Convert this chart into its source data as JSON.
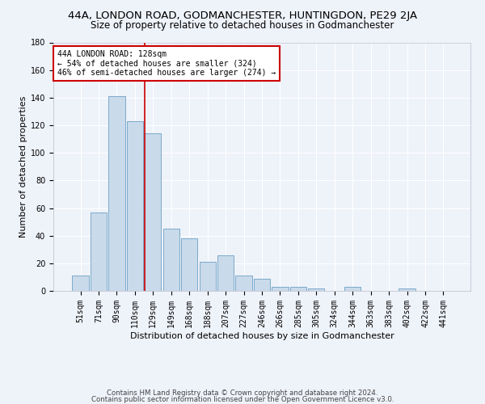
{
  "title": "44A, LONDON ROAD, GODMANCHESTER, HUNTINGDON, PE29 2JA",
  "subtitle": "Size of property relative to detached houses in Godmanchester",
  "xlabel": "Distribution of detached houses by size in Godmanchester",
  "ylabel": "Number of detached properties",
  "categories": [
    "51sqm",
    "71sqm",
    "90sqm",
    "110sqm",
    "129sqm",
    "149sqm",
    "168sqm",
    "188sqm",
    "207sqm",
    "227sqm",
    "246sqm",
    "266sqm",
    "285sqm",
    "305sqm",
    "324sqm",
    "344sqm",
    "363sqm",
    "383sqm",
    "402sqm",
    "422sqm",
    "441sqm"
  ],
  "bar_heights": [
    11,
    57,
    141,
    123,
    114,
    45,
    38,
    21,
    26,
    11,
    9,
    3,
    3,
    2,
    0,
    3,
    0,
    0,
    2,
    0,
    0
  ],
  "bar_color": "#c9daea",
  "bar_edge_color": "#7aaacb",
  "red_line_index": 4,
  "annotation_text": "44A LONDON ROAD: 128sqm\n← 54% of detached houses are smaller (324)\n46% of semi-detached houses are larger (274) →",
  "annotation_box_color": "#ffffff",
  "annotation_box_edge_color": "#cc0000",
  "ylim": [
    0,
    180
  ],
  "yticks": [
    0,
    20,
    40,
    60,
    80,
    100,
    120,
    140,
    160,
    180
  ],
  "background_color": "#eef2f9",
  "grid_color": "#ffffff",
  "title_fontsize": 9.5,
  "subtitle_fontsize": 8.5,
  "axis_label_fontsize": 8,
  "tick_fontsize": 7,
  "footer_line1": "Contains HM Land Registry data © Crown copyright and database right 2024.",
  "footer_line2": "Contains public sector information licensed under the Open Government Licence v3.0."
}
